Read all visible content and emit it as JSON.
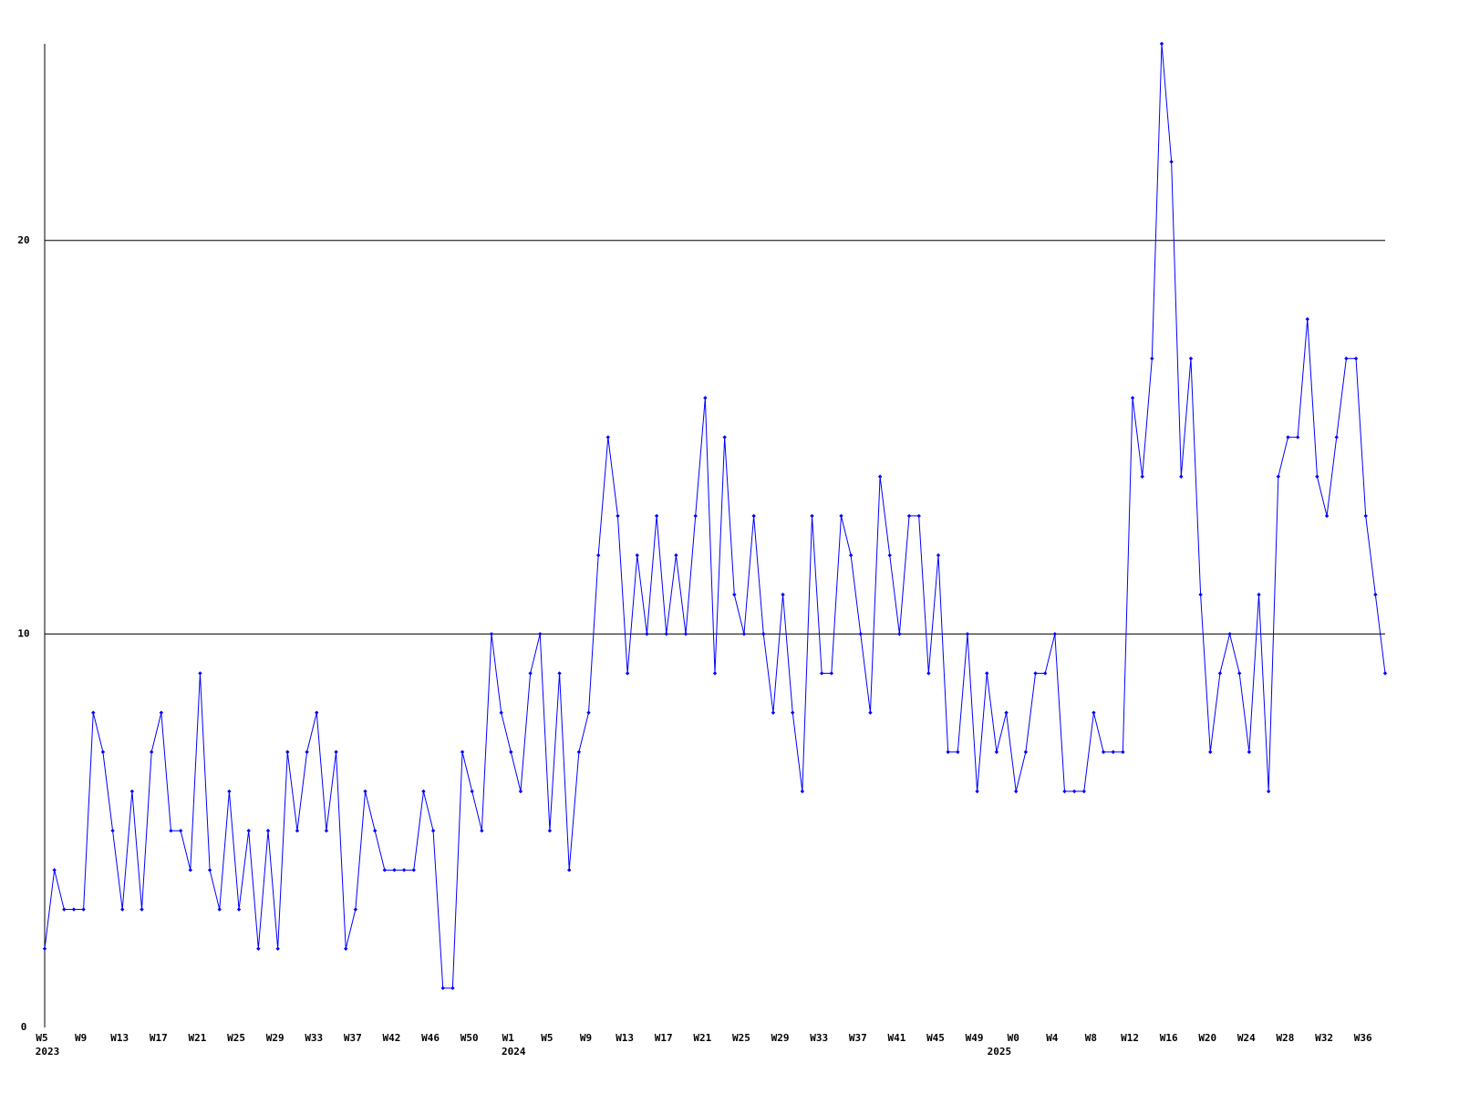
{
  "chart_data": {
    "type": "line",
    "categories": [
      "W5",
      null,
      null,
      null,
      "W9",
      null,
      null,
      null,
      "W13",
      null,
      null,
      null,
      "W17",
      null,
      null,
      null,
      "W21",
      null,
      null,
      null,
      "W25",
      null,
      null,
      null,
      "W29",
      null,
      null,
      null,
      "W33",
      null,
      null,
      null,
      "W37",
      null,
      null,
      null,
      "W42",
      null,
      null,
      null,
      "W46",
      null,
      null,
      null,
      "W50",
      null,
      null,
      null,
      "W1",
      null,
      null,
      null,
      "W5",
      null,
      null,
      null,
      "W9",
      null,
      null,
      null,
      "W13",
      null,
      null,
      null,
      "W17",
      null,
      null,
      null,
      "W21",
      null,
      null,
      null,
      "W25",
      null,
      null,
      null,
      "W29",
      null,
      null,
      null,
      "W33",
      null,
      null,
      null,
      "W37",
      null,
      null,
      null,
      "W41",
      null,
      null,
      null,
      "W45",
      null,
      null,
      null,
      "W49",
      null,
      null,
      null,
      "W0",
      null,
      null,
      null,
      "W4",
      null,
      null,
      null,
      "W8",
      null,
      null,
      null,
      "W12",
      null,
      null,
      null,
      "W16",
      null,
      null,
      null,
      "W20",
      null,
      null,
      null,
      "W24",
      null,
      null,
      null,
      "W28",
      null,
      null,
      null,
      "W32",
      null,
      null,
      null,
      "W36",
      null,
      null
    ],
    "years": [
      "2023",
      null,
      null,
      null,
      null,
      null,
      null,
      null,
      null,
      null,
      null,
      null,
      null,
      null,
      null,
      null,
      null,
      null,
      null,
      null,
      null,
      null,
      null,
      null,
      null,
      null,
      null,
      null,
      null,
      null,
      null,
      null,
      null,
      null,
      null,
      null,
      null,
      null,
      null,
      null,
      null,
      null,
      null,
      null,
      null,
      null,
      null,
      null,
      "2024",
      null,
      null,
      null,
      null,
      null,
      null,
      null,
      null,
      null,
      null,
      null,
      null,
      null,
      null,
      null,
      null,
      null,
      null,
      null,
      null,
      null,
      null,
      null,
      null,
      null,
      null,
      null,
      null,
      null,
      null,
      null,
      null,
      null,
      null,
      null,
      null,
      null,
      null,
      null,
      null,
      null,
      null,
      null,
      null,
      null,
      null,
      null,
      null,
      null,
      "2025",
      null,
      null,
      null,
      null,
      null,
      null,
      null,
      null,
      null,
      null,
      null,
      null,
      null,
      null,
      null,
      null,
      null,
      null,
      null,
      null,
      null,
      null,
      null,
      null,
      null,
      null,
      null,
      null,
      null,
      null,
      null,
      null,
      null,
      null,
      null,
      null,
      null,
      null
    ],
    "series": [
      {
        "color": "#0000ff",
        "values": [
          2,
          4,
          3,
          3,
          3,
          8,
          7,
          5,
          3,
          6,
          3,
          7,
          8,
          5,
          5,
          4,
          9,
          4,
          3,
          6,
          3,
          5,
          2,
          5,
          2,
          7,
          5,
          7,
          8,
          5,
          7,
          2,
          3,
          6,
          5,
          4,
          4,
          4,
          4,
          6,
          5,
          1,
          1,
          7,
          6,
          5,
          10,
          8,
          7,
          6,
          9,
          10,
          5,
          9,
          4,
          7,
          8,
          12,
          15,
          13,
          9,
          12,
          10,
          13,
          10,
          12,
          10,
          13,
          16,
          9,
          15,
          11,
          10,
          13,
          10,
          8,
          11,
          8,
          6,
          13,
          9,
          9,
          13,
          12,
          10,
          8,
          14,
          12,
          10,
          13,
          13,
          9,
          12,
          7,
          7,
          10,
          6,
          9,
          7,
          8,
          6,
          7,
          9,
          9,
          10,
          6,
          6,
          6,
          8,
          7,
          7,
          7,
          16,
          14,
          17,
          25,
          22,
          14,
          17,
          11,
          7,
          9,
          10,
          9,
          7,
          11,
          6,
          14,
          15,
          15,
          18,
          14,
          13,
          15,
          17,
          17,
          13,
          11,
          9
        ]
      }
    ],
    "ylim": [
      0,
      25
    ],
    "yticks": [
      0,
      10,
      20
    ],
    "grid": true
  }
}
